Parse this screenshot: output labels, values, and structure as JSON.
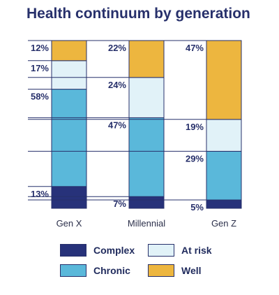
{
  "chart_data": {
    "type": "stacked-bar",
    "title": "Health continuum by generation",
    "categories": [
      "Gen X",
      "Millennial",
      "Gen Z"
    ],
    "series": [
      {
        "name": "Complex",
        "values": [
          13,
          7,
          5
        ]
      },
      {
        "name": "Chronic",
        "values": [
          58,
          47,
          29
        ]
      },
      {
        "name": "At risk",
        "values": [
          17,
          24,
          19
        ]
      },
      {
        "name": "Well",
        "values": [
          12,
          22,
          47
        ]
      }
    ],
    "value_suffix": "%",
    "ylim": [
      0,
      100
    ],
    "grid": false,
    "legend_position": "bottom",
    "colors": {
      "Complex": "#27327a",
      "Chronic": "#5ab8da",
      "At risk": "#e1f2f8",
      "Well": "#edb63f",
      "border": "#27306b",
      "text": "#27306b"
    }
  },
  "legend_items": [
    {
      "label": "Complex",
      "series": "Complex"
    },
    {
      "label": "At risk",
      "series": "At risk"
    },
    {
      "label": "Chronic",
      "series": "Chronic"
    },
    {
      "label": "Well",
      "series": "Well"
    }
  ]
}
